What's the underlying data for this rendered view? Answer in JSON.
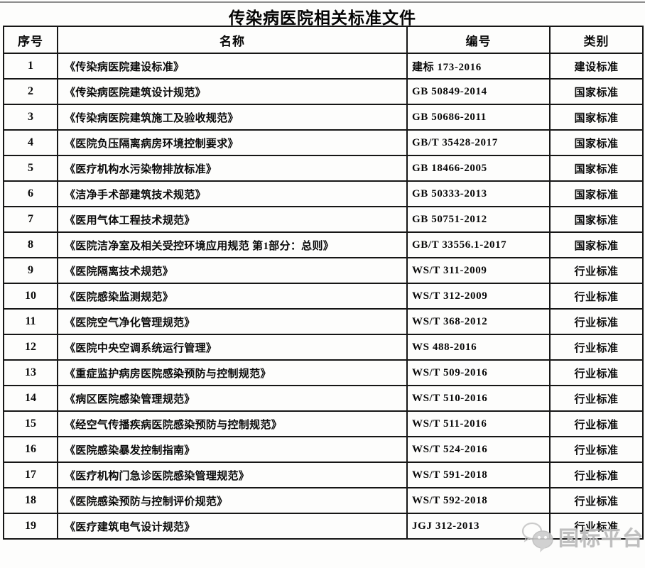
{
  "title": "传染病医院相关标准文件",
  "table": {
    "headers": [
      "序号",
      "名称",
      "编号",
      "类别"
    ],
    "rows": [
      [
        "1",
        "《传染病医院建设标准》",
        "建标 173-2016",
        "建设标准"
      ],
      [
        "2",
        "《传染病医院建筑设计规范》",
        "GB 50849-2014",
        "国家标准"
      ],
      [
        "3",
        "《传染病医院建筑施工及验收规范》",
        "GB 50686-2011",
        "国家标准"
      ],
      [
        "4",
        "《医院负压隔离病房环境控制要求》",
        "GB/T 35428-2017",
        "国家标准"
      ],
      [
        "5",
        "《医疗机构水污染物排放标准》",
        "GB 18466-2005",
        "国家标准"
      ],
      [
        "6",
        "《洁净手术部建筑技术规范》",
        "GB 50333-2013",
        "国家标准"
      ],
      [
        "7",
        "《医用气体工程技术规范》",
        "GB 50751-2012",
        "国家标准"
      ],
      [
        "8",
        "《医院洁净室及相关受控环境应用规范 第1部分：总则》",
        "GB/T 33556.1-2017",
        "国家标准"
      ],
      [
        "9",
        "《医院隔离技术规范》",
        "WS/T 311-2009",
        "行业标准"
      ],
      [
        "10",
        "《医院感染监测规范》",
        "WS/T 312-2009",
        "行业标准"
      ],
      [
        "11",
        "《医院空气净化管理规范》",
        "WS/T 368-2012",
        "行业标准"
      ],
      [
        "12",
        "《医院中央空调系统运行管理》",
        "WS 488-2016",
        "行业标准"
      ],
      [
        "13",
        "《重症监护病房医院感染预防与控制规范》",
        "WS/T 509-2016",
        "行业标准"
      ],
      [
        "14",
        "《病区医院感染管理规范》",
        "WS/T 510-2016",
        "行业标准"
      ],
      [
        "15",
        "《经空气传播疾病医院感染预防与控制规范》",
        "WS/T 511-2016",
        "行业标准"
      ],
      [
        "16",
        "《医院感染暴发控制指南》",
        "WS/T 524-2016",
        "行业标准"
      ],
      [
        "17",
        "《医疗机构门急诊医院感染管理规范》",
        "WS/T 591-2018",
        "行业标准"
      ],
      [
        "18",
        "《医院感染预防与控制评价规范》",
        "WS/T 592-2018",
        "行业标准"
      ],
      [
        "19",
        "《医疗建筑电气设计规范》",
        "JGJ 312-2013",
        "行业标准"
      ]
    ]
  },
  "watermark": {
    "label": "国标平台",
    "icon": "chat-bubbles-icon",
    "color": "#bcbcbc"
  },
  "colors": {
    "border": "#161616",
    "text": "#0a0a0a",
    "background": "#fdfdfc",
    "top_rule": "#8d8d8d"
  }
}
